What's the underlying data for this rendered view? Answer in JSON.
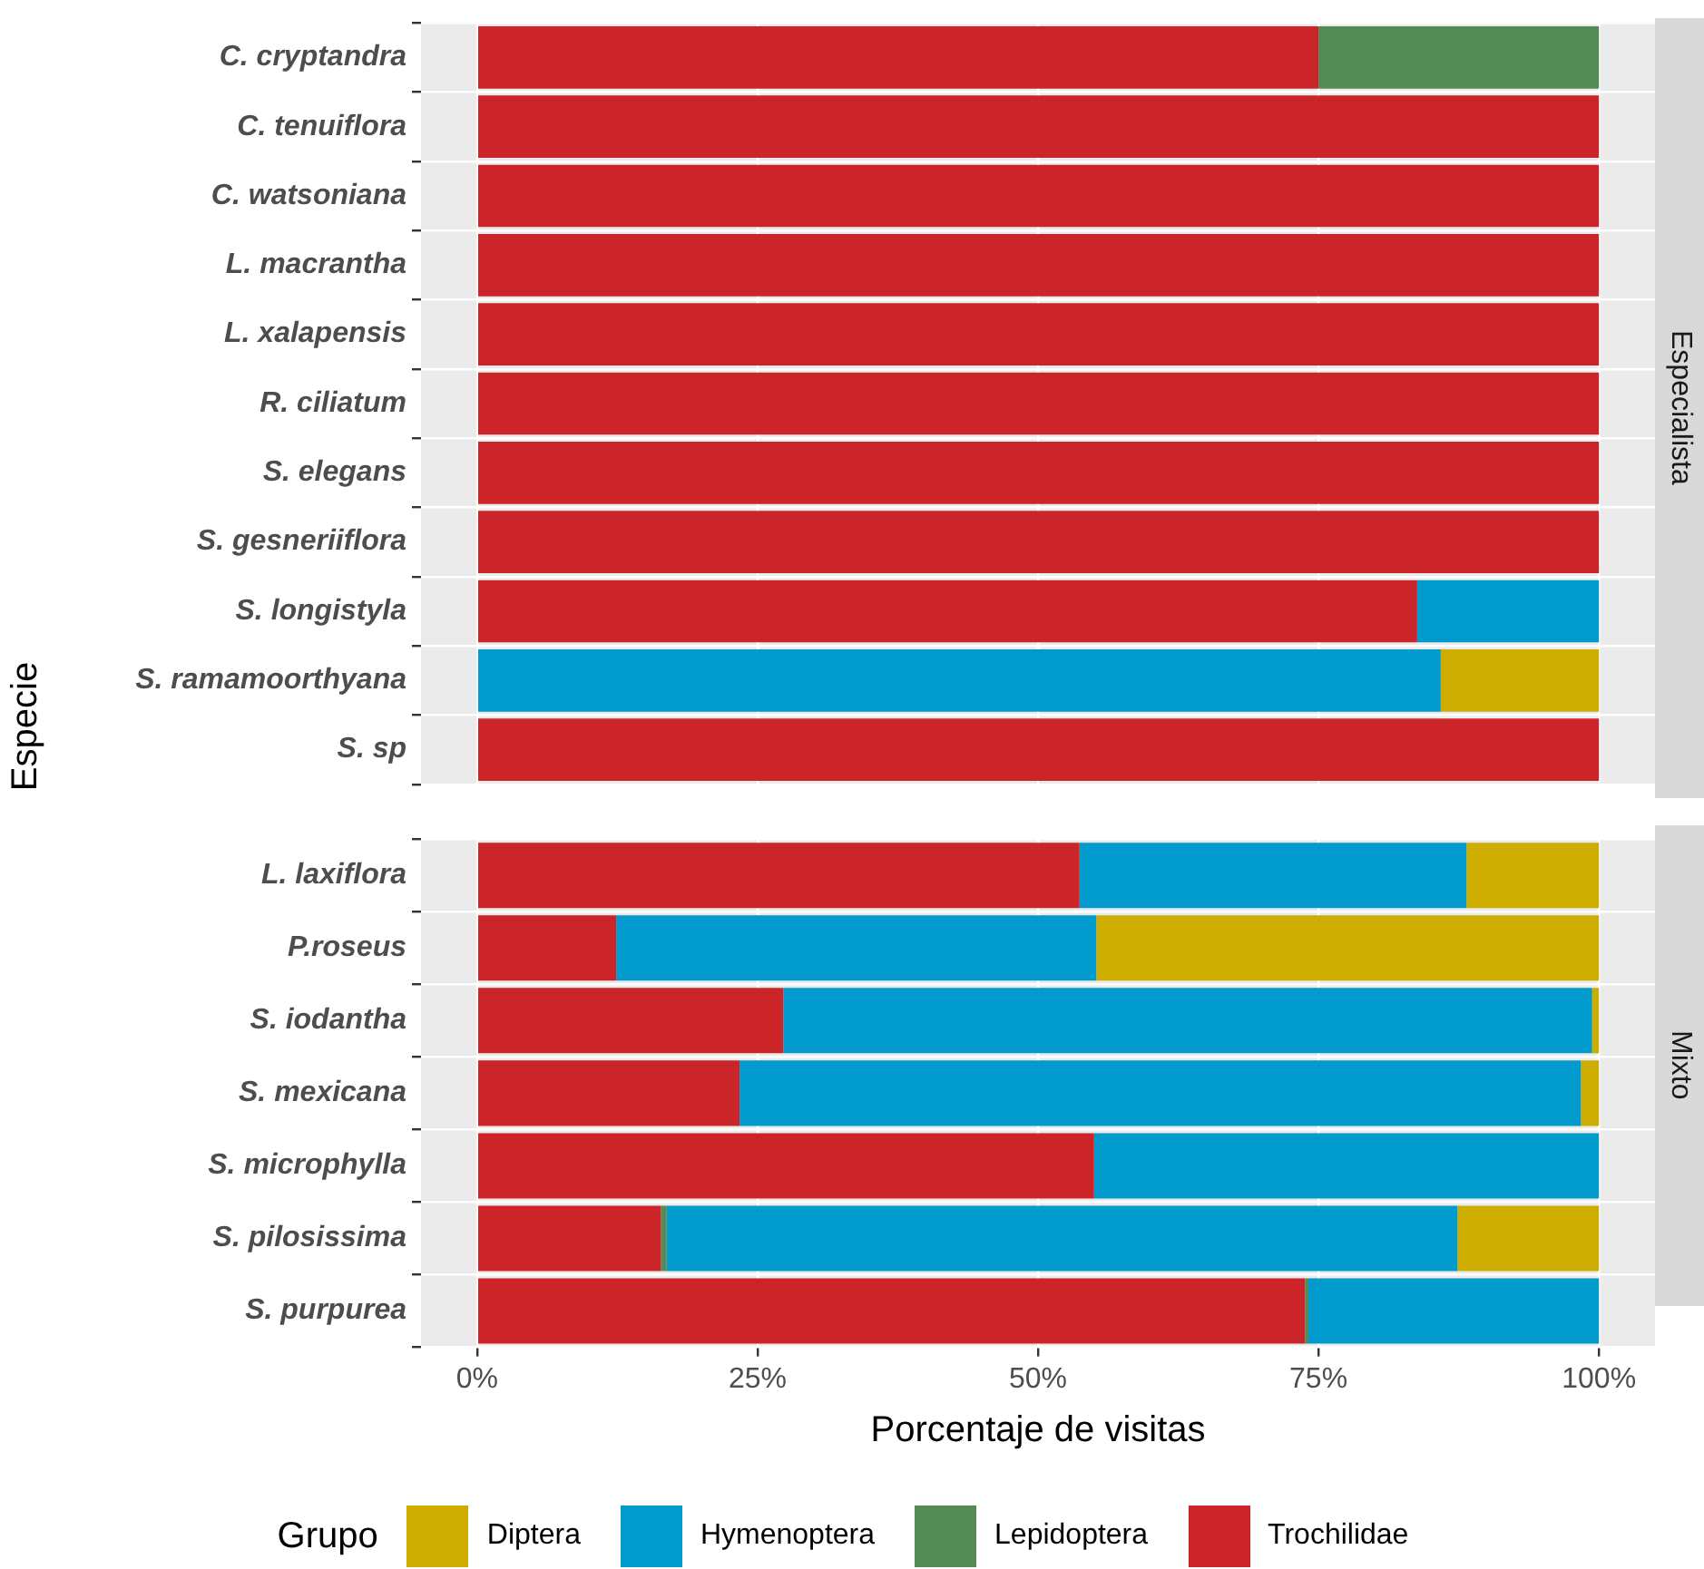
{
  "chart_data": [
    {
      "type": "bar",
      "title": "Especialista",
      "ylabel": "Especie",
      "orientation": "horizontal",
      "stacked": true,
      "grid": true,
      "tick_labels": "y",
      "legend": "bottom",
      "legend_title": "Grupo",
      "categories": [
        "C. cryptandra",
        "C. tenuiflora",
        "C. watsoniana",
        "L. macrantha",
        "L. xalapensis",
        "R. ciliatum",
        "S. elegans",
        "S. gesneriiflora",
        "S. longistyla",
        "S. ramamoorthyana",
        "S. sp"
      ],
      "xlim": [
        -5,
        105
      ],
      "xticks": [
        0,
        25,
        50,
        75,
        100
      ],
      "series": [
        {
          "name": "Trochilidae",
          "color": "#cc2529",
          "values": [
            75,
            100,
            100,
            100,
            100,
            100,
            100,
            100,
            83.8,
            0,
            100
          ]
        },
        {
          "name": "Lepidoptera",
          "color": "#548b54",
          "values": [
            25,
            0,
            0,
            0,
            0,
            0,
            0,
            0,
            0,
            0,
            0
          ]
        },
        {
          "name": "Hymenoptera",
          "color": "#009acd",
          "values": [
            0,
            0,
            0,
            0,
            0,
            0,
            0,
            0,
            16.2,
            85.9,
            0
          ]
        },
        {
          "name": "Diptera",
          "color": "#cdad00",
          "values": [
            0,
            0,
            0,
            0,
            0,
            0,
            0,
            0,
            0,
            14.1,
            0
          ]
        }
      ]
    },
    {
      "type": "bar",
      "title": "Mixto",
      "xlabel": "Porcentaje de visitas",
      "orientation": "horizontal",
      "stacked": true,
      "grid": true,
      "categories": [
        "L. laxiflora",
        "P.roseus",
        "S. iodantha",
        "S. mexicana",
        "S. microphylla",
        "S. pilosissima",
        "S. purpurea"
      ],
      "xlim": [
        -5,
        105
      ],
      "xticks": [
        {
          "value": 0,
          "label": "0%"
        },
        {
          "value": 25,
          "label": "25%"
        },
        {
          "value": 50,
          "label": "50%"
        },
        {
          "value": 75,
          "label": "75%"
        },
        {
          "value": 100,
          "label": "100%"
        }
      ],
      "series": [
        {
          "color": "#cc2529",
          "values": [
            53.7,
            12.4,
            27.3,
            23.4,
            55,
            16.4,
            73.8
          ]
        },
        {
          "color": "#548b54",
          "values": [
            0,
            0,
            0,
            0,
            0,
            0.5,
            0.3
          ]
        },
        {
          "color": "#009acd",
          "values": [
            34.5,
            42.8,
            72.1,
            75,
            45,
            70.5,
            25.9
          ]
        },
        {
          "color": "#cdad00",
          "values": [
            11.8,
            44.8,
            0.6,
            1.6,
            0,
            12.6,
            0
          ]
        }
      ]
    }
  ]
}
